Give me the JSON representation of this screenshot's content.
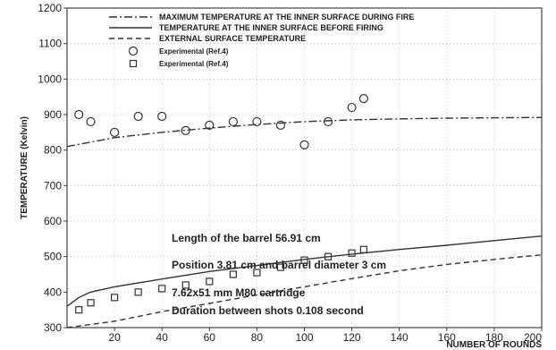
{
  "chart_data": {
    "type": "line",
    "title": "",
    "xlabel": "NUMBER OF ROUNDS",
    "ylabel": "TEMPERATURE (Kelvin)",
    "xlim": [
      0,
      200
    ],
    "ylim": [
      300,
      1200
    ],
    "x_ticks": [
      20,
      40,
      60,
      80,
      100,
      120,
      140,
      160,
      180,
      200
    ],
    "y_ticks": [
      300,
      400,
      500,
      600,
      700,
      800,
      900,
      1000,
      1100,
      1200
    ],
    "grid": true,
    "legend_position": "top",
    "series": [
      {
        "name": "MAXIMUM TEMPERATURE AT THE INNER SURFACE DURING FIRE",
        "style": "dash-dot",
        "color": "#333333",
        "x": [
          0,
          20,
          40,
          60,
          80,
          100,
          120,
          140,
          160,
          180,
          200
        ],
        "y": [
          810,
          835,
          850,
          862,
          872,
          880,
          885,
          888,
          890,
          891,
          892
        ]
      },
      {
        "name": "TEMPERATURE AT THE INNER SURFACE BEFORE FIRING",
        "style": "solid",
        "color": "#333333",
        "x": [
          0,
          5,
          10,
          20,
          40,
          60,
          80,
          100,
          120,
          140,
          160,
          180,
          200
        ],
        "y": [
          360,
          385,
          400,
          415,
          437,
          458,
          475,
          492,
          507,
          520,
          532,
          545,
          558
        ]
      },
      {
        "name": "EXTERNAL SURFACE TEMPERATURE",
        "style": "dashed",
        "color": "#333333",
        "x": [
          0,
          20,
          40,
          60,
          80,
          100,
          120,
          140,
          160,
          180,
          200
        ],
        "y": [
          300,
          318,
          345,
          368,
          392,
          415,
          438,
          460,
          478,
          492,
          505
        ]
      },
      {
        "name": "Experimental (Ref.4)",
        "style": "circle",
        "color": "#333333",
        "x": [
          5,
          10,
          20,
          30,
          40,
          50,
          60,
          70,
          80,
          90,
          100,
          110,
          120,
          125
        ],
        "y": [
          900,
          880,
          850,
          895,
          895,
          855,
          870,
          880,
          880,
          870,
          815,
          880,
          920,
          945
        ]
      },
      {
        "name": "Experimental (Ref.4)",
        "style": "square",
        "color": "#333333",
        "x": [
          5,
          10,
          20,
          30,
          40,
          50,
          60,
          70,
          80,
          90,
          100,
          110,
          120,
          125
        ],
        "y": [
          350,
          370,
          385,
          400,
          410,
          420,
          430,
          450,
          455,
          470,
          490,
          500,
          510,
          520
        ]
      }
    ],
    "annotations": [
      "Length of the barrel 56.91 cm",
      "Position 3.81 cm and barrel diameter 3 cm",
      "7.62x51 mm M80 cartridge",
      "Duration between shots 0.108 second"
    ]
  }
}
